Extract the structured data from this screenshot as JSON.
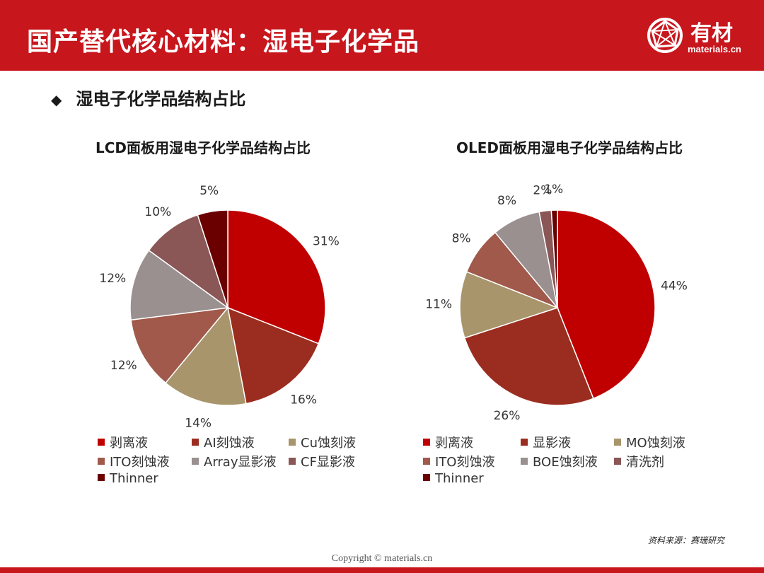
{
  "header": {
    "title": "国产替代核心材料：湿电子化学品",
    "logo_text": "有材",
    "logo_sub": "materials.cn"
  },
  "section": {
    "bullet": "◆",
    "title": "湿电子化学品结构占比"
  },
  "colors": {
    "brand_red": "#c8161d"
  },
  "chart_data": [
    {
      "type": "pie",
      "title": "LCD面板用湿电子化学品结构占比",
      "categories": [
        "剥离液",
        "AI刻蚀液",
        "Cu蚀刻液",
        "ITO刻蚀液",
        "Array显影液",
        "CF显影液",
        "Thinner"
      ],
      "values": [
        31,
        16,
        14,
        12,
        12,
        10,
        5
      ],
      "labels": [
        "31%",
        "16%",
        "14%",
        "12%",
        "12%",
        "10%",
        "5%"
      ],
      "colors": [
        "#c00000",
        "#9b2d20",
        "#a8956b",
        "#a0594a",
        "#9a9090",
        "#8a5656",
        "#6b0000"
      ],
      "legend_position": "bottom"
    },
    {
      "type": "pie",
      "title": "OLED面板用湿电子化学品结构占比",
      "categories": [
        "剥离液",
        "显影液",
        "MO蚀刻液",
        "ITO刻蚀液",
        "BOE蚀刻液",
        "清洗剂",
        "Thinner"
      ],
      "values": [
        44,
        26,
        11,
        8,
        8,
        2,
        1
      ],
      "labels": [
        "44%",
        "26%",
        "11%",
        "8%",
        "8%",
        "2%",
        "1%"
      ],
      "colors": [
        "#c00000",
        "#9b2d20",
        "#a8956b",
        "#a0594a",
        "#9a9090",
        "#8a5656",
        "#6b0000"
      ],
      "legend_position": "bottom"
    }
  ],
  "footer": {
    "source": "资料来源：赛瑞研究",
    "copyright": "Copyright © materials.cn"
  }
}
